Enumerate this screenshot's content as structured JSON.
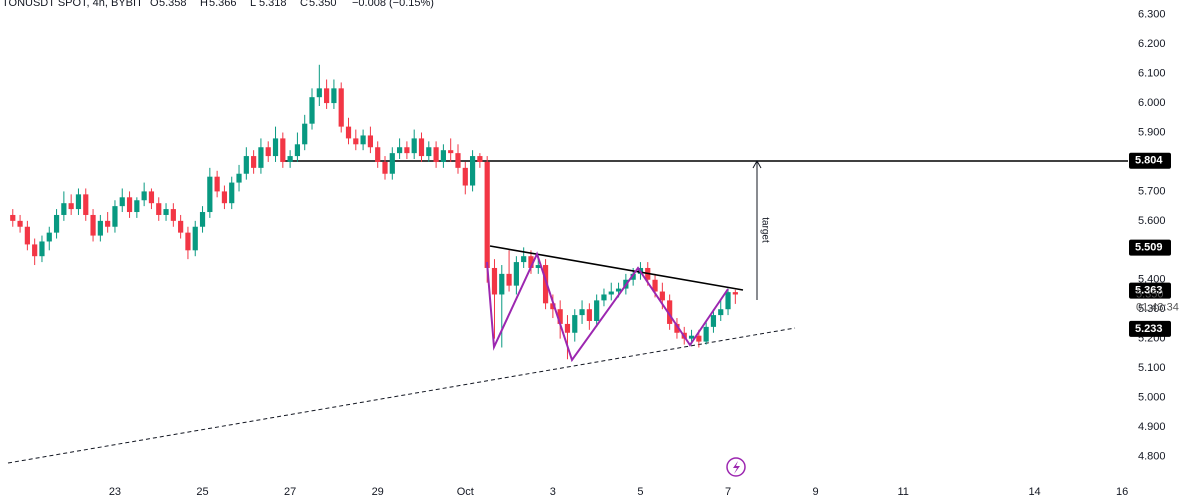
{
  "header": {
    "symbol": "TONUSDT SPOT, 4h, BYBIT",
    "ohlc": [
      {
        "key": "O",
        "value": "5.358"
      },
      {
        "key": "H",
        "value": "5.366"
      },
      {
        "key": "L",
        "value": "5.318"
      },
      {
        "key": "C",
        "value": "5.350"
      }
    ],
    "change": "−0.008 (−0.15%)"
  },
  "chart_data": {
    "type": "candlestick",
    "open": [
      5.62,
      5.6,
      5.58,
      5.52,
      5.48,
      5.53,
      5.56,
      5.62,
      5.66,
      5.64,
      5.69,
      5.62,
      5.55,
      5.6,
      5.58,
      5.65,
      5.68,
      5.63,
      5.67,
      5.7,
      5.66,
      5.62,
      5.64,
      5.6,
      5.56,
      5.5,
      5.58,
      5.63,
      5.75,
      5.7,
      5.66,
      5.73,
      5.76,
      5.82,
      5.78,
      5.85,
      5.82,
      5.88,
      5.8,
      5.82,
      5.86,
      5.93,
      6.02,
      6.05,
      6.0,
      6.05,
      5.92,
      5.88,
      5.86,
      5.89,
      5.85,
      5.8,
      5.76,
      5.83,
      5.85,
      5.83,
      5.88,
      5.82,
      5.85,
      5.8,
      5.84,
      5.83,
      5.78,
      5.72,
      5.82,
      5.8,
      5.44,
      5.35,
      5.42,
      5.38,
      5.46,
      5.48,
      5.44,
      5.45,
      5.32,
      5.3,
      5.25,
      5.22,
      5.28,
      5.3,
      5.26,
      5.33,
      5.35,
      5.36,
      5.37,
      5.4,
      5.42,
      5.44,
      5.4,
      5.36,
      5.33,
      5.25,
      5.22,
      5.2,
      5.21,
      5.19,
      5.24,
      5.28,
      5.3,
      5.358
    ],
    "high": [
      5.64,
      5.62,
      5.6,
      5.54,
      5.55,
      5.58,
      5.64,
      5.7,
      5.69,
      5.71,
      5.71,
      5.64,
      5.62,
      5.63,
      5.67,
      5.71,
      5.7,
      5.68,
      5.73,
      5.71,
      5.68,
      5.66,
      5.66,
      5.62,
      5.58,
      5.6,
      5.65,
      5.78,
      5.77,
      5.72,
      5.75,
      5.79,
      5.85,
      5.84,
      5.88,
      5.87,
      5.92,
      5.9,
      5.84,
      5.9,
      5.96,
      6.05,
      6.13,
      6.08,
      6.08,
      6.07,
      5.95,
      5.91,
      5.91,
      5.92,
      5.87,
      5.82,
      5.85,
      5.88,
      5.87,
      5.91,
      5.9,
      5.87,
      5.87,
      5.86,
      5.88,
      5.86,
      5.8,
      5.84,
      5.83,
      5.82,
      5.47,
      5.45,
      5.5,
      5.48,
      5.51,
      5.5,
      5.48,
      5.47,
      5.35,
      5.33,
      5.28,
      5.3,
      5.33,
      5.32,
      5.35,
      5.37,
      5.39,
      5.39,
      5.42,
      5.44,
      5.46,
      5.46,
      5.42,
      5.39,
      5.35,
      5.27,
      5.24,
      5.23,
      5.23,
      5.26,
      5.3,
      5.33,
      5.37,
      5.366
    ],
    "low": [
      5.58,
      5.56,
      5.5,
      5.45,
      5.46,
      5.5,
      5.54,
      5.6,
      5.62,
      5.62,
      5.6,
      5.53,
      5.53,
      5.56,
      5.56,
      5.63,
      5.61,
      5.61,
      5.65,
      5.64,
      5.6,
      5.6,
      5.58,
      5.54,
      5.47,
      5.48,
      5.56,
      5.61,
      5.68,
      5.64,
      5.64,
      5.7,
      5.74,
      5.76,
      5.76,
      5.8,
      5.8,
      5.78,
      5.78,
      5.8,
      5.84,
      5.91,
      5.99,
      5.98,
      5.98,
      5.9,
      5.86,
      5.84,
      5.84,
      5.83,
      5.78,
      5.74,
      5.74,
      5.81,
      5.81,
      5.81,
      5.8,
      5.8,
      5.78,
      5.78,
      5.8,
      5.76,
      5.69,
      5.7,
      5.78,
      5.39,
      5.2,
      5.17,
      5.36,
      5.35,
      5.44,
      5.42,
      5.42,
      5.3,
      5.27,
      5.2,
      5.13,
      5.19,
      5.25,
      5.23,
      5.24,
      5.31,
      5.33,
      5.34,
      5.35,
      5.38,
      5.4,
      5.38,
      5.34,
      5.3,
      5.23,
      5.2,
      5.18,
      5.18,
      5.17,
      5.18,
      5.22,
      5.26,
      5.28,
      5.318
    ],
    "close": [
      5.6,
      5.58,
      5.52,
      5.48,
      5.53,
      5.56,
      5.62,
      5.66,
      5.64,
      5.69,
      5.62,
      5.55,
      5.6,
      5.58,
      5.65,
      5.68,
      5.63,
      5.67,
      5.7,
      5.66,
      5.62,
      5.64,
      5.6,
      5.56,
      5.5,
      5.58,
      5.63,
      5.75,
      5.7,
      5.66,
      5.73,
      5.76,
      5.82,
      5.78,
      5.85,
      5.82,
      5.88,
      5.8,
      5.82,
      5.86,
      5.93,
      6.02,
      6.05,
      6.0,
      6.05,
      5.92,
      5.88,
      5.86,
      5.89,
      5.85,
      5.8,
      5.76,
      5.83,
      5.85,
      5.83,
      5.88,
      5.82,
      5.85,
      5.8,
      5.84,
      5.83,
      5.78,
      5.72,
      5.82,
      5.8,
      5.44,
      5.35,
      5.42,
      5.38,
      5.46,
      5.48,
      5.44,
      5.45,
      5.32,
      5.3,
      5.25,
      5.22,
      5.28,
      5.3,
      5.26,
      5.33,
      5.35,
      5.36,
      5.37,
      5.4,
      5.42,
      5.44,
      5.4,
      5.36,
      5.33,
      5.25,
      5.22,
      5.2,
      5.21,
      5.19,
      5.24,
      5.28,
      5.3,
      5.358,
      5.35
    ],
    "up_color": "#089981",
    "down_color": "#f23645",
    "ylim": [
      4.72,
      6.35
    ],
    "yticks": [
      {
        "value": 4.8,
        "label": "4.800"
      },
      {
        "value": 4.9,
        "label": "4.900"
      },
      {
        "value": 5.0,
        "label": "5.000"
      },
      {
        "value": 5.1,
        "label": "5.100"
      },
      {
        "value": 5.2,
        "label": "5.200"
      },
      {
        "value": 5.3,
        "label": "5.300"
      },
      {
        "value": 5.4,
        "label": "5.400"
      },
      {
        "value": 5.5,
        "label": "5.500"
      },
      {
        "value": 5.6,
        "label": "5.600"
      },
      {
        "value": 5.7,
        "label": "5.700"
      },
      {
        "value": 5.8,
        "label": "5.800"
      },
      {
        "value": 5.9,
        "label": "5.900"
      },
      {
        "value": 6.0,
        "label": "6.000"
      },
      {
        "value": 6.1,
        "label": "6.100"
      },
      {
        "value": 6.2,
        "label": "6.200"
      },
      {
        "value": 6.3,
        "label": "6.300"
      }
    ],
    "xlim": [
      -1.75,
      152.8
    ],
    "xticks": [
      {
        "value": 14,
        "label": "23"
      },
      {
        "value": 26,
        "label": "25"
      },
      {
        "value": 38,
        "label": "27"
      },
      {
        "value": 50,
        "label": "29"
      },
      {
        "value": 62,
        "label": "Oct"
      },
      {
        "value": 74,
        "label": "3"
      },
      {
        "value": 86,
        "label": "5"
      },
      {
        "value": 98,
        "label": "7"
      },
      {
        "value": 110,
        "label": "9"
      },
      {
        "value": 122,
        "label": "11"
      },
      {
        "value": 140,
        "label": "14"
      },
      {
        "value": 152,
        "label": "16"
      }
    ],
    "price_labels": [
      5.804,
      5.509,
      5.363,
      5.233
    ],
    "current_price": {
      "value": 5.35,
      "label": "5.350"
    },
    "countdown": "01:43:34",
    "annotation": "target",
    "grid": false
  }
}
